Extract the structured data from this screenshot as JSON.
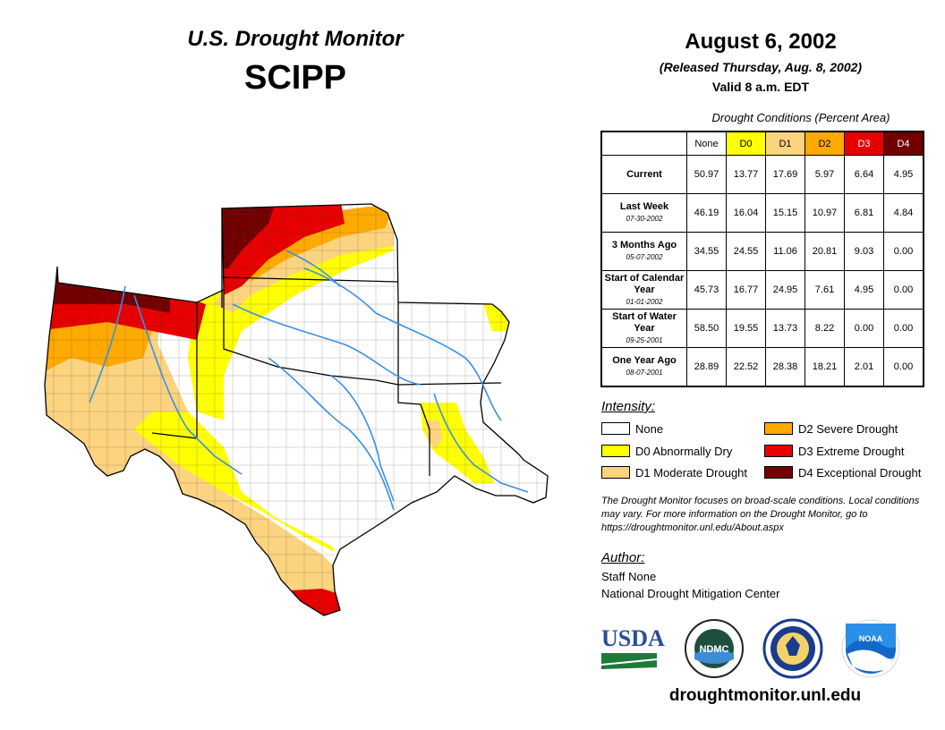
{
  "header": {
    "map_title": "U.S. Drought Monitor",
    "region": "SCIPP",
    "date": "August 6, 2002",
    "released": "(Released Thursday, Aug. 8, 2002)",
    "valid": "Valid 8 a.m. EDT"
  },
  "table": {
    "caption": "Drought Conditions (Percent Area)",
    "columns": [
      "None",
      "D0",
      "D1",
      "D2",
      "D3",
      "D4"
    ],
    "column_colors": [
      "#ffffff",
      "#ffff00",
      "#fcd37f",
      "#ffaa00",
      "#e60000",
      "#730000"
    ],
    "column_text_colors": [
      "#000000",
      "#000000",
      "#000000",
      "#000000",
      "#ffffff",
      "#ffffff"
    ],
    "rows": [
      {
        "label": "Current",
        "date": "",
        "values": [
          "50.97",
          "13.77",
          "17.69",
          "5.97",
          "6.64",
          "4.95"
        ]
      },
      {
        "label": "Last Week",
        "date": "07-30-2002",
        "values": [
          "46.19",
          "16.04",
          "15.15",
          "10.97",
          "6.81",
          "4.84"
        ]
      },
      {
        "label": "3 Months Ago",
        "date": "05-07-2002",
        "values": [
          "34.55",
          "24.55",
          "11.06",
          "20.81",
          "9.03",
          "0.00"
        ]
      },
      {
        "label": "Start of Calendar Year",
        "date": "01-01-2002",
        "values": [
          "45.73",
          "16.77",
          "24.95",
          "7.61",
          "4.95",
          "0.00"
        ]
      },
      {
        "label": "Start of Water Year",
        "date": "09-25-2001",
        "values": [
          "58.50",
          "19.55",
          "13.73",
          "8.22",
          "0.00",
          "0.00"
        ]
      },
      {
        "label": "One Year Ago",
        "date": "08-07-2001",
        "values": [
          "28.89",
          "22.52",
          "28.38",
          "18.21",
          "2.01",
          "0.00"
        ]
      }
    ]
  },
  "legend": {
    "title": "Intensity:",
    "items": [
      {
        "label": "None",
        "color": "#ffffff"
      },
      {
        "label": "D0 Abnormally Dry",
        "color": "#ffff00"
      },
      {
        "label": "D1 Moderate Drought",
        "color": "#fcd37f"
      },
      {
        "label": "D2 Severe Drought",
        "color": "#ffaa00"
      },
      {
        "label": "D3 Extreme Drought",
        "color": "#e60000"
      },
      {
        "label": "D4 Exceptional Drought",
        "color": "#730000"
      }
    ]
  },
  "note": "The Drought Monitor focuses on broad-scale conditions. Local conditions may vary. For more information on the Drought Monitor, go to https://droughtmonitor.unl.edu/About.aspx",
  "author": {
    "title": "Author:",
    "name": "Staff None",
    "organization": "National Drought Mitigation Center"
  },
  "logos": {
    "usda": "USDA",
    "ndmc": "NDMC",
    "noaa": "NOAA",
    "commerce": "Department of Commerce seal"
  },
  "website": "droughtmonitor.unl.edu"
}
